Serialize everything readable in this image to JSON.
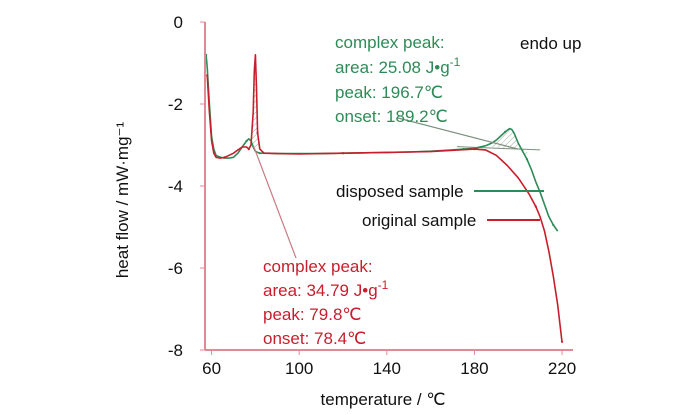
{
  "chart_data": {
    "type": "line",
    "xlabel": "temperature / ℃",
    "ylabel": "heat flow / mW·mg⁻¹",
    "xlim": [
      57,
      225
    ],
    "ylim": [
      -8,
      0
    ],
    "x_ticks": [
      60,
      100,
      140,
      180,
      220
    ],
    "y_ticks": [
      0,
      -2,
      -4,
      -6,
      -8
    ],
    "x_tick_labels": [
      "60",
      "100",
      "140",
      "180",
      "220"
    ],
    "y_tick_labels": [
      "0",
      "-2",
      "-4",
      "-6",
      "-8"
    ],
    "corner_label": "endo up",
    "legend_placement": "right",
    "colors": {
      "disposed": "#2e8b57",
      "original": "#c81e2c",
      "axis": "#e08a96"
    },
    "series": [
      {
        "name": "disposed sample",
        "color": "#2e8b57",
        "x": [
          57.5,
          58,
          59,
          60,
          61,
          62,
          64,
          66,
          68,
          70,
          72,
          74,
          76,
          77,
          78,
          79,
          80,
          81,
          82,
          84,
          86,
          90,
          100,
          110,
          120,
          130,
          140,
          150,
          160,
          170,
          175,
          180,
          185,
          188,
          190,
          192,
          194,
          196,
          197,
          198,
          200,
          202,
          204,
          206,
          208,
          210,
          212,
          214,
          216,
          218
        ],
        "y": [
          -0.8,
          -1.1,
          -2.0,
          -2.8,
          -3.1,
          -3.25,
          -3.3,
          -3.32,
          -3.32,
          -3.3,
          -3.2,
          -3.05,
          -2.9,
          -2.85,
          -2.9,
          -3.05,
          -3.15,
          -3.18,
          -3.2,
          -3.2,
          -3.2,
          -3.21,
          -3.21,
          -3.21,
          -3.2,
          -3.19,
          -3.18,
          -3.17,
          -3.15,
          -3.12,
          -3.1,
          -3.08,
          -3.02,
          -2.95,
          -2.88,
          -2.78,
          -2.68,
          -2.6,
          -2.62,
          -2.7,
          -2.95,
          -3.15,
          -3.35,
          -3.6,
          -3.9,
          -4.15,
          -4.45,
          -4.75,
          -4.95,
          -5.1
        ]
      },
      {
        "name": "original sample",
        "color": "#c81e2c",
        "x": [
          58,
          59,
          60,
          61,
          62,
          64,
          66,
          68,
          70,
          72,
          74,
          76,
          77,
          78,
          79,
          79.5,
          80,
          80.5,
          81,
          82,
          84,
          90,
          100,
          110,
          120,
          130,
          140,
          150,
          160,
          170,
          180,
          185,
          190,
          195,
          200,
          205,
          208,
          210,
          212,
          214,
          216,
          218,
          220
        ],
        "y": [
          -1.3,
          -2.2,
          -2.9,
          -3.2,
          -3.3,
          -3.32,
          -3.3,
          -3.25,
          -3.2,
          -3.12,
          -3.05,
          -3.05,
          -3.1,
          -3.0,
          -2.2,
          -1.2,
          -0.8,
          -1.6,
          -2.7,
          -3.1,
          -3.2,
          -3.21,
          -3.22,
          -3.21,
          -3.2,
          -3.19,
          -3.18,
          -3.17,
          -3.16,
          -3.13,
          -3.1,
          -3.12,
          -3.25,
          -3.5,
          -3.8,
          -4.2,
          -4.5,
          -4.75,
          -5.1,
          -5.6,
          -6.2,
          -6.9,
          -7.8
        ]
      }
    ],
    "annotations": [
      {
        "id": "green",
        "color": "#2e8b57",
        "lines": [
          "complex peak:",
          "area: 25.08 J•g-1",
          "peak: 196.7℃",
          "onset: 189.2℃"
        ],
        "pointer_target": [
          200,
          -3.1
        ]
      },
      {
        "id": "red",
        "color": "#c81e2c",
        "lines": [
          "complex peak:",
          "area: 34.79 J•g-1",
          "peak: 79.8℃",
          "onset: 78.4℃"
        ],
        "pointer_target": [
          79,
          -3.0
        ]
      }
    ]
  }
}
